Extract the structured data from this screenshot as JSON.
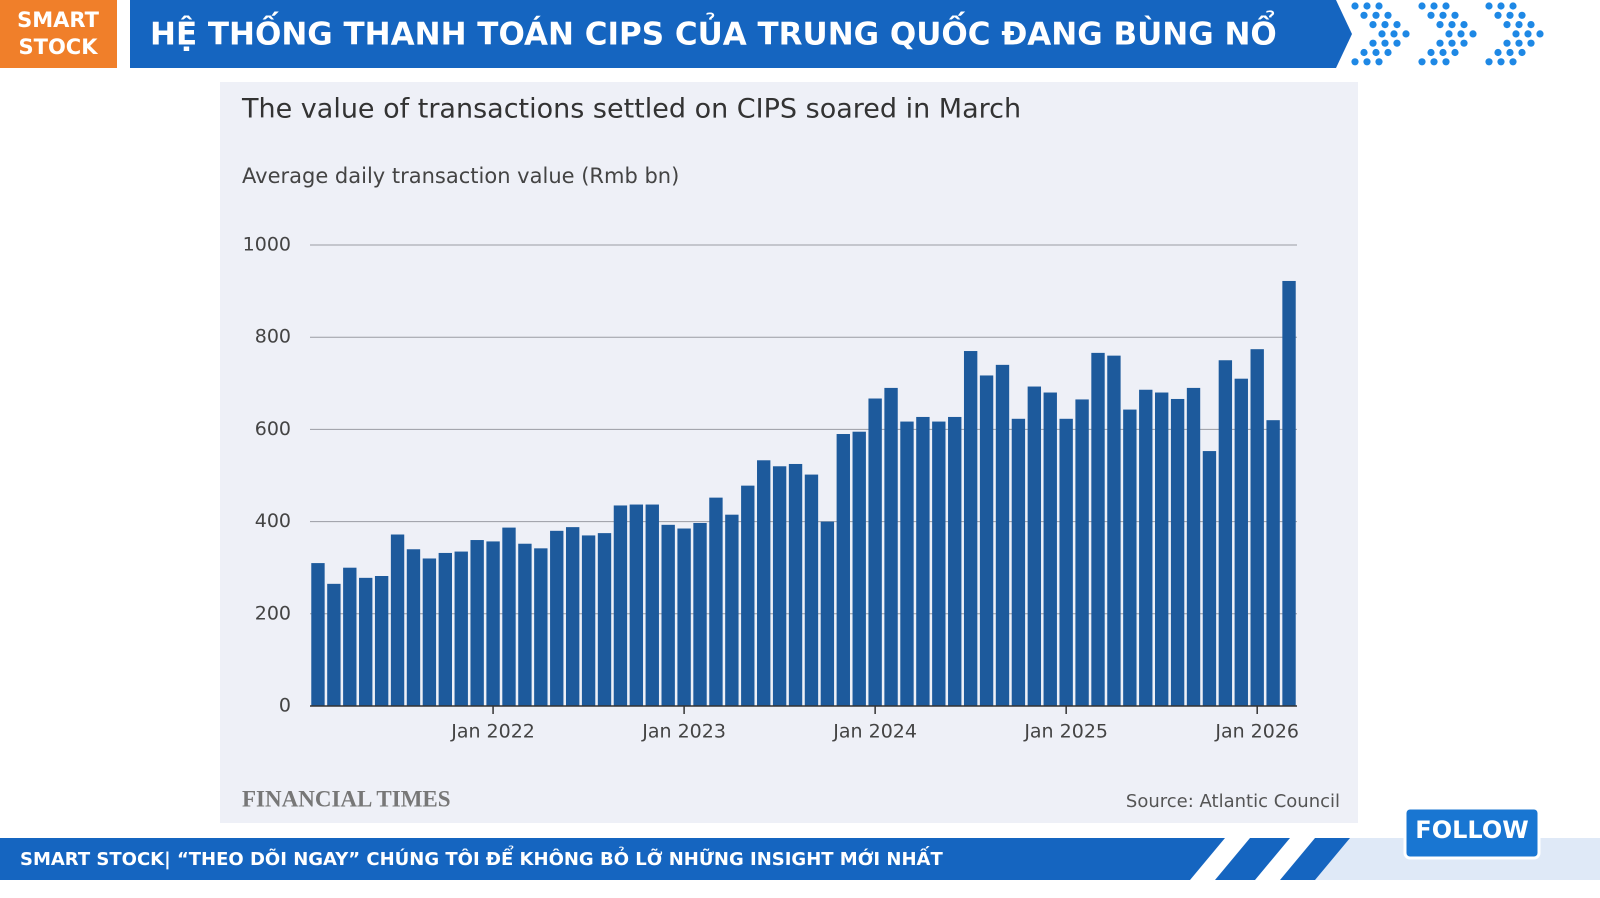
{
  "header": {
    "logo": [
      "SMART",
      "STOCK"
    ],
    "title": "HỆ THỐNG THANH TOÁN CIPS CỦA TRUNG QUỐC ĐANG BÙNG NỔ"
  },
  "chart_data": {
    "type": "bar",
    "title": "The value of transactions settled on CIPS soared in March",
    "subtitle": "Average daily transaction value (Rmb bn)",
    "categories": [
      null,
      null,
      null,
      null,
      null,
      null,
      null,
      null,
      null,
      null,
      null,
      "Jan 2022",
      null,
      null,
      null,
      null,
      null,
      null,
      null,
      null,
      null,
      null,
      null,
      "Jan 2023",
      null,
      null,
      null,
      null,
      null,
      null,
      null,
      null,
      null,
      null,
      null,
      "Jan 2024",
      null,
      null,
      null,
      null,
      null,
      null,
      null,
      null,
      null,
      null,
      null,
      "Jan 2025",
      null,
      null,
      null,
      null,
      null,
      null,
      null,
      null,
      null,
      null,
      null,
      "Jan 2026",
      null,
      null
    ],
    "values": [
      310,
      265,
      300,
      278,
      282,
      372,
      340,
      320,
      332,
      335,
      360,
      357,
      387,
      352,
      342,
      380,
      388,
      370,
      375,
      435,
      437,
      437,
      393,
      385,
      397,
      452,
      415,
      478,
      533,
      520,
      525,
      502,
      400,
      590,
      595,
      667,
      690,
      617,
      627,
      617,
      627,
      770,
      717,
      740,
      623,
      693,
      680,
      623,
      665,
      766,
      760,
      643,
      686,
      680,
      666,
      690,
      553,
      750,
      710,
      774,
      620,
      922
    ],
    "color": "#1d5a9c",
    "ylim": [
      0,
      1000
    ],
    "yticks": [
      0,
      200,
      400,
      600,
      800,
      1000
    ],
    "grid": true,
    "publisher": "FINANCIAL TIMES",
    "source": "Source: Atlantic Council"
  },
  "footer": {
    "text": "SMART STOCK| “THEO DÕI NGAY” CHÚNG TÔI ĐỂ KHÔNG BỎ LỠ NHỮNG INSIGHT MỚI NHẤT",
    "button": "FOLLOW"
  }
}
